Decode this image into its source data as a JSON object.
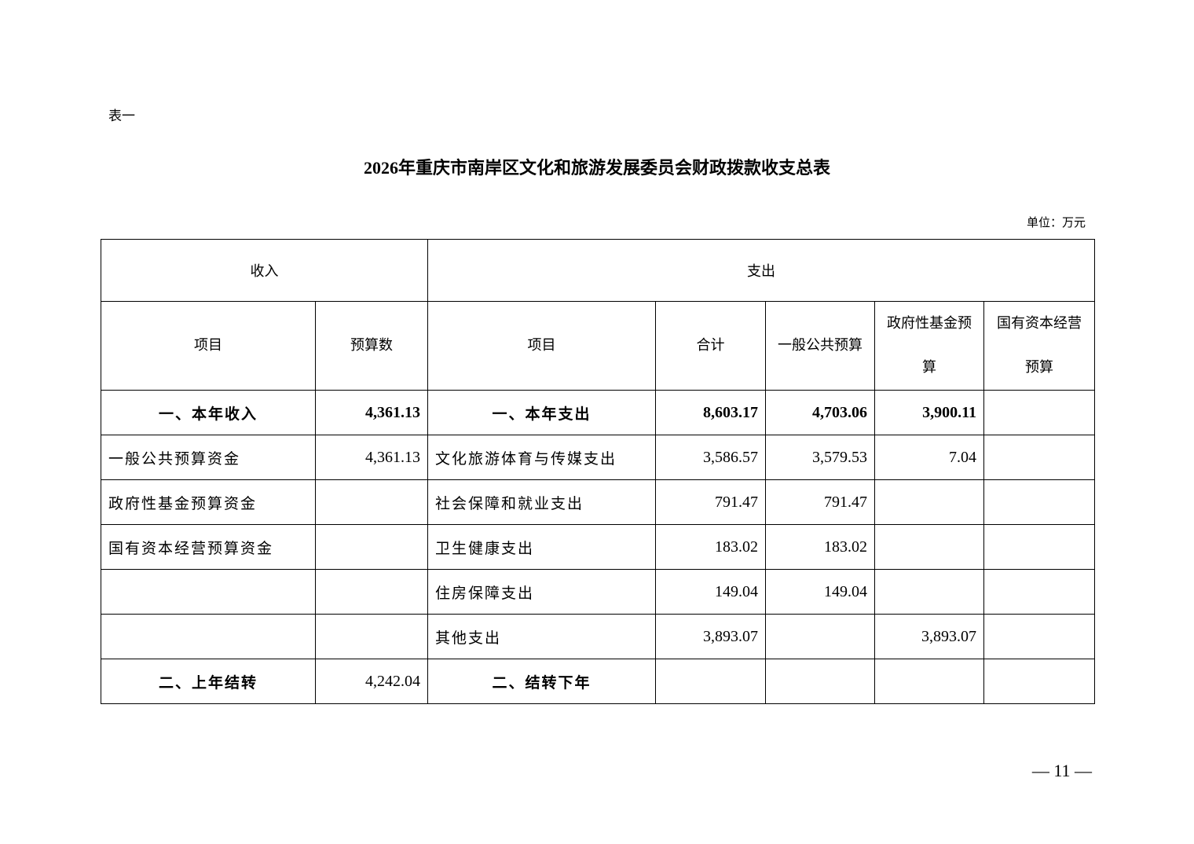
{
  "table_label": "表一",
  "title": "2026年重庆市南岸区文化和旅游发展委员会财政拨款收支总表",
  "unit": "单位：万元",
  "header": {
    "income": "收入",
    "expense": "支出",
    "cols": [
      "项目",
      "预算数",
      "项目",
      "合计",
      "一般公共预算",
      "政府性基金预算",
      "国有资本经营预算"
    ]
  },
  "rows": [
    {
      "c0": "一、本年收入",
      "c1": "4,361.13",
      "c2": "一、本年支出",
      "c3": "8,603.17",
      "c4": "4,703.06",
      "c5": "3,900.11",
      "c6": ""
    },
    {
      "c0": "一般公共预算资金",
      "c1": "4,361.13",
      "c2": "文化旅游体育与传媒支出",
      "c3": "3,586.57",
      "c4": "3,579.53",
      "c5": "7.04",
      "c6": ""
    },
    {
      "c0": "政府性基金预算资金",
      "c1": "",
      "c2": "社会保障和就业支出",
      "c3": "791.47",
      "c4": "791.47",
      "c5": "",
      "c6": ""
    },
    {
      "c0": "国有资本经营预算资金",
      "c1": "",
      "c2": "卫生健康支出",
      "c3": "183.02",
      "c4": "183.02",
      "c5": "",
      "c6": ""
    },
    {
      "c0": "",
      "c1": "",
      "c2": "住房保障支出",
      "c3": "149.04",
      "c4": "149.04",
      "c5": "",
      "c6": ""
    },
    {
      "c0": "",
      "c1": "",
      "c2": "其他支出",
      "c3": "3,893.07",
      "c4": "",
      "c5": "3,893.07",
      "c6": ""
    },
    {
      "c0": "二、上年结转",
      "c1": "4,242.04",
      "c2": "二、结转下年",
      "c3": "",
      "c4": "",
      "c5": "",
      "c6": ""
    }
  ],
  "page_number": "— 11 —"
}
